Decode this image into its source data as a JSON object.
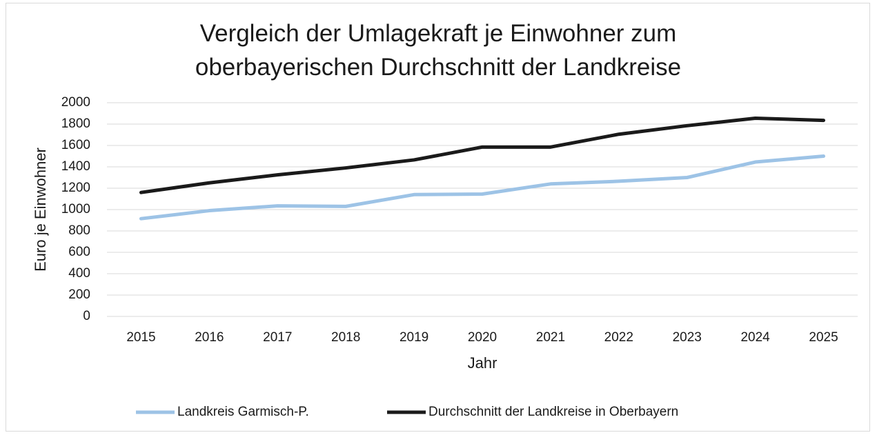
{
  "chart_data": {
    "type": "line",
    "title": "Vergleich der Umlagekraft je Einwohner zum oberbayerischen Durchschnitt der Landkreise",
    "x_label": "Jahr",
    "y_label": "Euro je Einwohner",
    "categories": [
      "2015",
      "2016",
      "2017",
      "2018",
      "2019",
      "2020",
      "2021",
      "2022",
      "2023",
      "2024",
      "2025"
    ],
    "series": [
      {
        "name": "Landkreis Garmisch-P.",
        "color": "#9dc3e6",
        "values": [
          915,
          990,
          1035,
          1030,
          1140,
          1145,
          1240,
          1265,
          1300,
          1445,
          1500
        ]
      },
      {
        "name": "Durchschnitt der Landkreise in Oberbayern",
        "color": "#1a1a1a",
        "values": [
          1160,
          1250,
          1325,
          1390,
          1465,
          1585,
          1585,
          1705,
          1785,
          1855,
          1835
        ]
      }
    ],
    "ylim": [
      0,
      2000
    ],
    "yticks": [
      0,
      200,
      400,
      600,
      800,
      1000,
      1200,
      1400,
      1600,
      1800,
      2000
    ],
    "grid": true,
    "legend": "bottom"
  }
}
